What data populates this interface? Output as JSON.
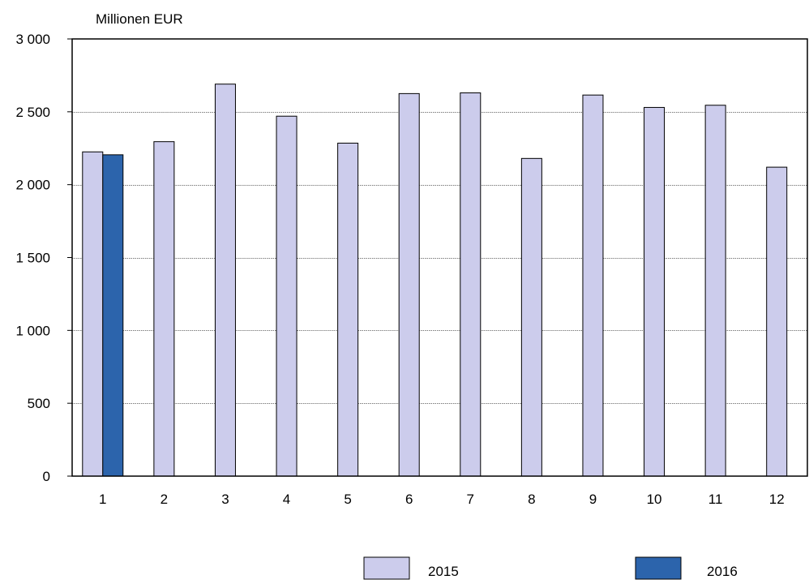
{
  "chart_data": {
    "type": "bar",
    "unit_label": "Millionen EUR",
    "categories": [
      "1",
      "2",
      "3",
      "4",
      "5",
      "6",
      "7",
      "8",
      "9",
      "10",
      "11",
      "12"
    ],
    "series": [
      {
        "name": "2015",
        "color": "#ccccec",
        "values": [
          2225,
          2295,
          2690,
          2470,
          2285,
          2625,
          2630,
          2180,
          2615,
          2530,
          2545,
          2120
        ]
      },
      {
        "name": "2016",
        "color": "#2c64ac",
        "values": [
          2205,
          null,
          null,
          null,
          null,
          null,
          null,
          null,
          null,
          null,
          null,
          null
        ]
      }
    ],
    "ylim": [
      0,
      3000
    ],
    "yticks": [
      0,
      500,
      1000,
      1500,
      2000,
      2500,
      3000
    ],
    "ytick_labels": [
      "0",
      "500",
      "1 000",
      "1 500",
      "2 000",
      "2 500",
      "3 000"
    ],
    "grid": true,
    "legend_position": "bottom"
  }
}
